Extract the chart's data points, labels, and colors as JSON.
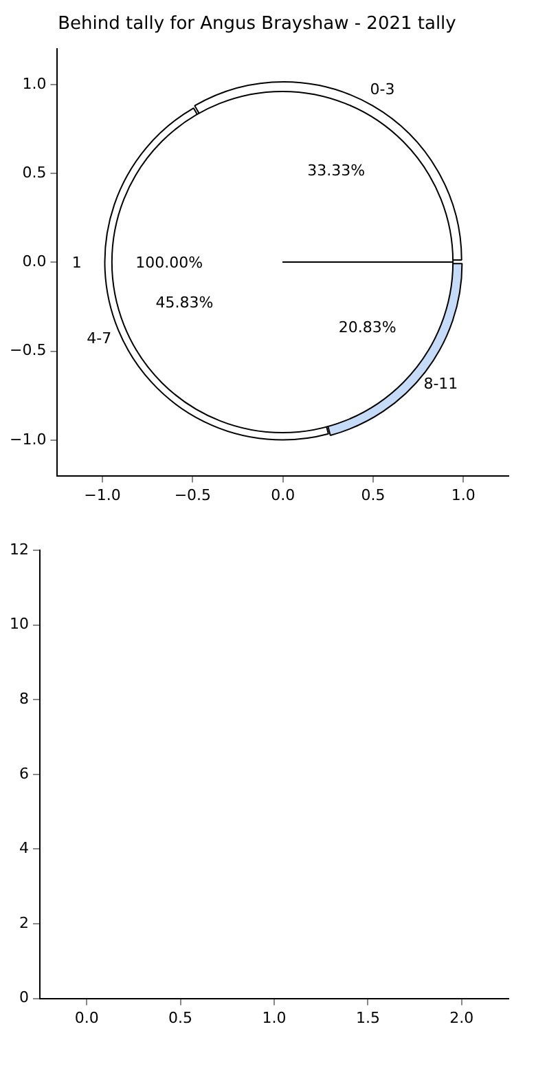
{
  "chart_data": [
    {
      "type": "scatter",
      "title": "Behind tally for Angus Brayshaw - 2021 tally",
      "xlim": [
        -1.25,
        1.25
      ],
      "ylim": [
        -1.2,
        1.2
      ],
      "xticks": [
        {
          "value": -1,
          "label": "−1.0"
        },
        {
          "value": -0.5,
          "label": "−0.5"
        },
        {
          "value": 0,
          "label": "0.0"
        },
        {
          "value": 0.5,
          "label": "0.5"
        },
        {
          "value": 1,
          "label": "1.0"
        }
      ],
      "yticks": [
        {
          "value": -1,
          "label": "−1.0"
        },
        {
          "value": -0.5,
          "label": "−0.5"
        },
        {
          "value": 0,
          "label": "0.0"
        },
        {
          "value": 0.5,
          "label": "0.5"
        },
        {
          "value": 1,
          "label": "1.0"
        }
      ]
    },
    {
      "type": "pie",
      "categories": [
        "0-3",
        "8-11",
        "4-7"
      ],
      "values": [
        33.33,
        20.83,
        45.83
      ],
      "colors": [
        "#ffffff",
        "#c6dbf7",
        "#ffffff"
      ],
      "value_labels": [
        "33.33%",
        "20.83%",
        "45.83%"
      ]
    },
    {
      "type": "pie",
      "categories": [
        "1"
      ],
      "values": [
        100
      ],
      "colors": [
        "#ffffff"
      ],
      "value_labels": [
        "100.00%"
      ]
    },
    {
      "type": "scatter",
      "xlim": [
        -0.25,
        2.25
      ],
      "ylim": [
        0,
        12
      ],
      "xticks": [
        {
          "value": 0,
          "label": "0.0"
        },
        {
          "value": 0.5,
          "label": "0.5"
        },
        {
          "value": 1,
          "label": "1.0"
        },
        {
          "value": 1.5,
          "label": "1.5"
        },
        {
          "value": 2,
          "label": "2.0"
        }
      ],
      "yticks": [
        0,
        2,
        4,
        6,
        8,
        10,
        12
      ]
    }
  ]
}
